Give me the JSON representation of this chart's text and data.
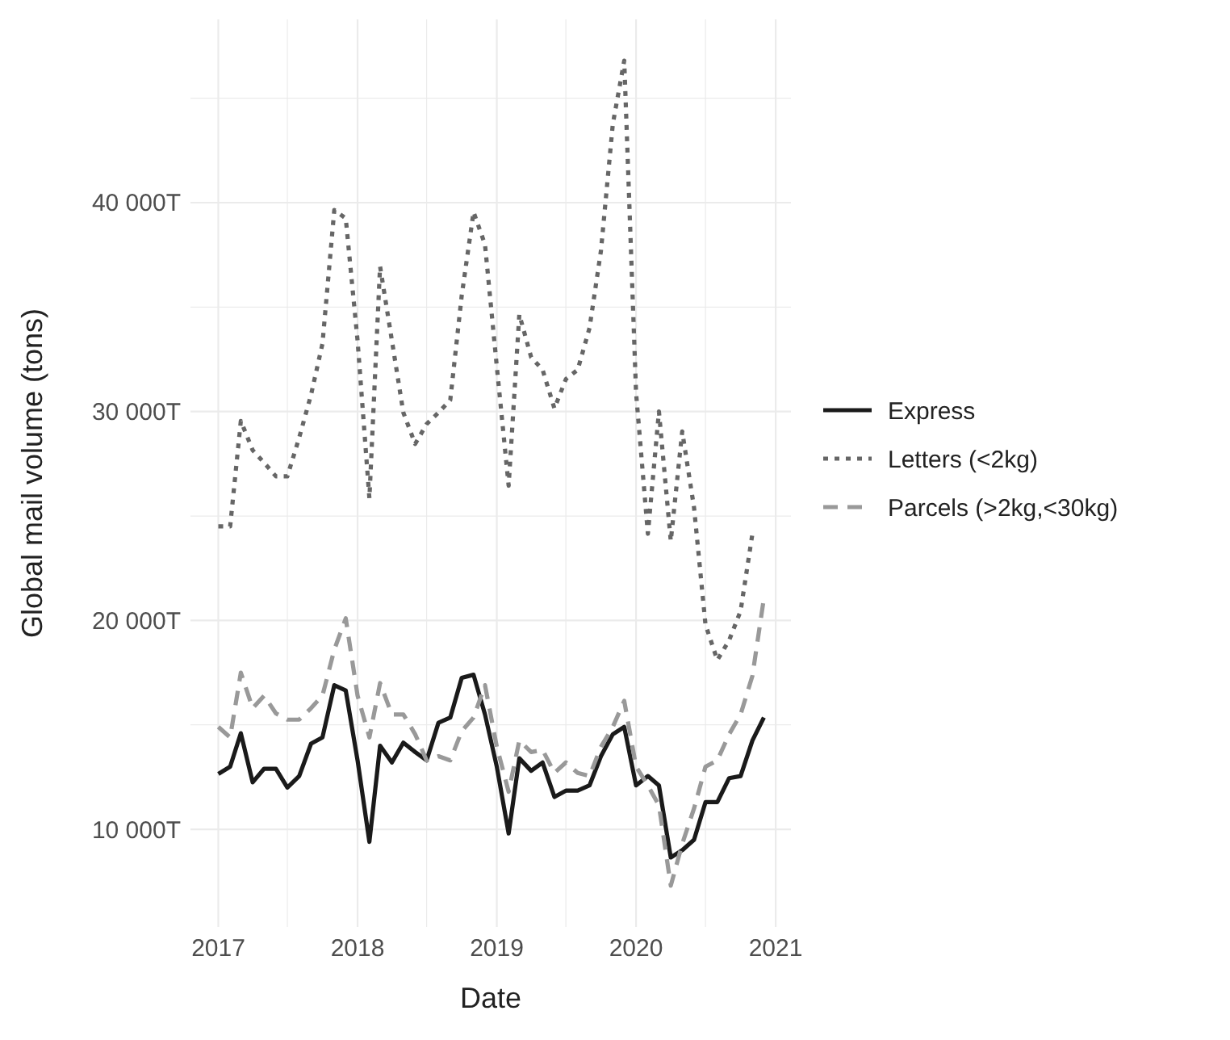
{
  "chart_data": {
    "type": "line",
    "xlabel": "Date",
    "ylabel": "Global mail volume (tons)",
    "x": [
      "2017-01",
      "2017-02",
      "2017-03",
      "2017-04",
      "2017-05",
      "2017-06",
      "2017-07",
      "2017-08",
      "2017-09",
      "2017-10",
      "2017-11",
      "2017-12",
      "2018-01",
      "2018-02",
      "2018-03",
      "2018-04",
      "2018-05",
      "2018-06",
      "2018-07",
      "2018-08",
      "2018-09",
      "2018-10",
      "2018-11",
      "2018-12",
      "2019-01",
      "2019-02",
      "2019-03",
      "2019-04",
      "2019-05",
      "2019-06",
      "2019-07",
      "2019-08",
      "2019-09",
      "2019-10",
      "2019-11",
      "2019-12",
      "2020-01",
      "2020-02",
      "2020-03",
      "2020-04",
      "2020-05",
      "2020-06",
      "2020-07",
      "2020-08",
      "2020-09",
      "2020-10",
      "2020-11",
      "2020-12"
    ],
    "series": [
      {
        "name": "Express",
        "color": "#1a1a1a",
        "line_style": "solid",
        "values": [
          12650,
          13000,
          14600,
          12250,
          12900,
          12900,
          12000,
          12550,
          14100,
          14400,
          16900,
          16650,
          13300,
          9400,
          14000,
          13200,
          14150,
          13700,
          13300,
          15100,
          15350,
          17250,
          17400,
          15500,
          13000,
          9800,
          13400,
          12800,
          13200,
          11550,
          11850,
          11850,
          12100,
          13500,
          14550,
          14900,
          12100,
          12550,
          12100,
          8650,
          9000,
          9500,
          11300,
          11300,
          12450,
          12550,
          14250,
          15350
        ]
      },
      {
        "name": "Letters (<2kg)",
        "color": "#666666",
        "line_style": "dotted",
        "values": [
          24500,
          24500,
          29550,
          28150,
          27550,
          26900,
          26900,
          28750,
          30800,
          33250,
          39650,
          39250,
          33400,
          25850,
          36950,
          33400,
          29950,
          28450,
          29400,
          29950,
          30550,
          35550,
          39550,
          38000,
          32150,
          26450,
          34650,
          32600,
          32000,
          30150,
          31550,
          32000,
          34000,
          37700,
          43750,
          46800,
          30900,
          24150,
          30000,
          23800,
          29050,
          25400,
          19800,
          18100,
          19050,
          20450,
          24150,
          null
        ]
      },
      {
        "name": "Parcels (>2kg,<30kg)",
        "color": "#999999",
        "line_style": "dashed",
        "values": [
          14900,
          14400,
          17500,
          15800,
          16400,
          15550,
          15250,
          15250,
          15800,
          16400,
          18600,
          20100,
          16400,
          14400,
          17000,
          15500,
          15500,
          14550,
          13300,
          13500,
          13300,
          14700,
          15350,
          16900,
          13950,
          11800,
          14250,
          13700,
          13800,
          12700,
          13200,
          12700,
          12550,
          13950,
          14900,
          16150,
          13000,
          12100,
          11150,
          7300,
          9300,
          11000,
          13000,
          13300,
          14550,
          15500,
          17350,
          21050
        ]
      }
    ],
    "xlim": [
      "2016-10-20",
      "2021-02-10"
    ],
    "xticks": [
      {
        "value": "2017",
        "label": "2017"
      },
      {
        "value": "2017-07",
        "label": null
      },
      {
        "value": "2018",
        "label": "2018"
      },
      {
        "value": "2018-07",
        "label": null
      },
      {
        "value": "2019",
        "label": "2019"
      },
      {
        "value": "2019-07",
        "label": null
      },
      {
        "value": "2020",
        "label": "2020"
      },
      {
        "value": "2020-07",
        "label": null
      },
      {
        "value": "2021",
        "label": "2021"
      }
    ],
    "ylim": [
      5325,
      48775
    ],
    "yticks": [
      {
        "value": 10000,
        "label": "10 000T"
      },
      {
        "value": 15000,
        "label": null
      },
      {
        "value": 20000,
        "label": "20 000T"
      },
      {
        "value": 25000,
        "label": null
      },
      {
        "value": 30000,
        "label": "30 000T"
      },
      {
        "value": 35000,
        "label": null
      },
      {
        "value": 40000,
        "label": "40 000T"
      },
      {
        "value": 45000,
        "label": null
      }
    ],
    "grid": true,
    "legend": "right"
  }
}
